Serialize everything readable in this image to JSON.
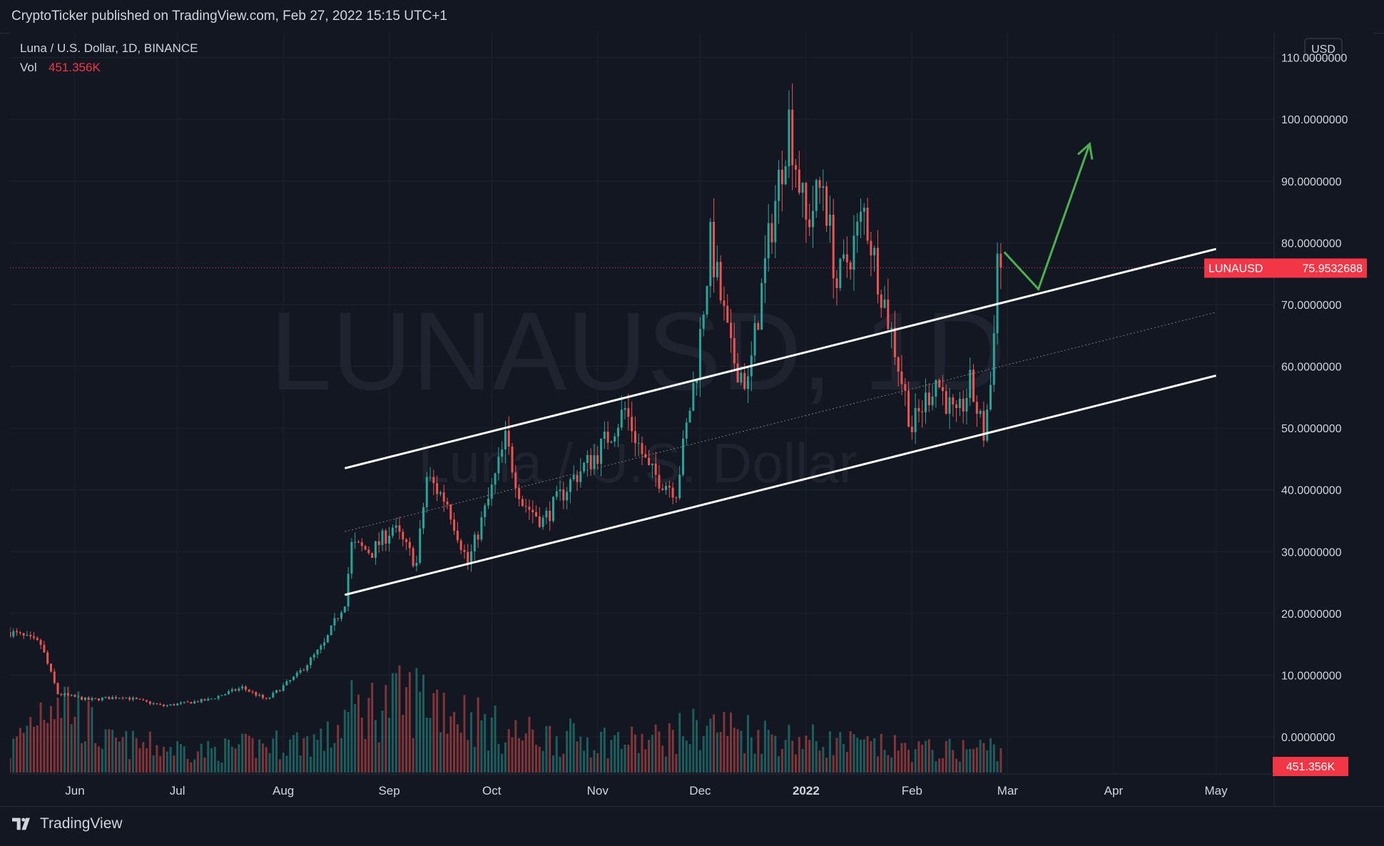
{
  "header": {
    "published_text": "CryptoTicker published on TradingView.com, Feb 27, 2022 15:15 UTC+1"
  },
  "legend": {
    "symbol_line": "Luna / U.S. Dollar, 1D, BINANCE",
    "vol_label": "Vol",
    "vol_value": "451.356K"
  },
  "watermark": {
    "ticker": "LUNAUSD, 1D",
    "name": "Luna / U.S. Dollar"
  },
  "price_axis": {
    "currency_button": "USD",
    "last_price_label": "LUNAUSD",
    "last_price_value": "75.9532688",
    "volume_badge": "451.356K"
  },
  "footer": {
    "brand": "TradingView"
  },
  "colors": {
    "background": "#131722",
    "grid": "#1e222d",
    "up": "#26a69a",
    "down": "#ef5350",
    "accent_red": "#f23645",
    "channel": "#ffffff",
    "arrow": "#4caf50"
  },
  "chart_data": {
    "type": "candlestick",
    "symbol": "LUNAUSD",
    "interval": "1D",
    "exchange": "BINANCE",
    "y_axis": {
      "range": [
        -6,
        114
      ],
      "ticks": [
        0,
        10,
        20,
        30,
        40,
        50,
        60,
        70,
        80,
        90,
        100,
        110
      ],
      "tick_labels": [
        "0.0000000",
        "10.0000000",
        "20.0000000",
        "30.0000000",
        "40.0000000",
        "50.0000000",
        "60.0000000",
        "70.0000000",
        "80.0000000",
        "90.0000000",
        "100.0000000",
        "110.0000000"
      ]
    },
    "x_axis": {
      "range": [
        "2021-05-13",
        "2022-05-18"
      ],
      "ticks": [
        {
          "label": "Jun",
          "date": "2021-06-01",
          "bold": false
        },
        {
          "label": "Jul",
          "date": "2021-07-01",
          "bold": false
        },
        {
          "label": "Aug",
          "date": "2021-08-01",
          "bold": false
        },
        {
          "label": "Sep",
          "date": "2021-09-01",
          "bold": false
        },
        {
          "label": "Oct",
          "date": "2021-10-01",
          "bold": false
        },
        {
          "label": "Nov",
          "date": "2021-11-01",
          "bold": false
        },
        {
          "label": "Dec",
          "date": "2021-12-01",
          "bold": false
        },
        {
          "label": "2022",
          "date": "2022-01-01",
          "bold": true
        },
        {
          "label": "Feb",
          "date": "2022-02-01",
          "bold": false
        },
        {
          "label": "Mar",
          "date": "2022-03-01",
          "bold": false
        },
        {
          "label": "Apr",
          "date": "2022-04-01",
          "bold": false
        },
        {
          "label": "May",
          "date": "2022-05-01",
          "bold": false
        }
      ]
    },
    "price_path": [
      {
        "date": "2021-05-13",
        "close": 17
      },
      {
        "date": "2021-05-22",
        "close": 15
      },
      {
        "date": "2021-05-27",
        "close": 7
      },
      {
        "date": "2021-06-05",
        "close": 6
      },
      {
        "date": "2021-06-15",
        "close": 6.5
      },
      {
        "date": "2021-06-27",
        "close": 5
      },
      {
        "date": "2021-07-10",
        "close": 6
      },
      {
        "date": "2021-07-20",
        "close": 8
      },
      {
        "date": "2021-07-27",
        "close": 6
      },
      {
        "date": "2021-08-05",
        "close": 10
      },
      {
        "date": "2021-08-13",
        "close": 15
      },
      {
        "date": "2021-08-19",
        "close": 22
      },
      {
        "date": "2021-08-21",
        "close": 31
      },
      {
        "date": "2021-08-27",
        "close": 30
      },
      {
        "date": "2021-09-02",
        "close": 34
      },
      {
        "date": "2021-09-09",
        "close": 28
      },
      {
        "date": "2021-09-12",
        "close": 42
      },
      {
        "date": "2021-09-18",
        "close": 38
      },
      {
        "date": "2021-09-24",
        "close": 28
      },
      {
        "date": "2021-10-01",
        "close": 40
      },
      {
        "date": "2021-10-05",
        "close": 48
      },
      {
        "date": "2021-10-10",
        "close": 38
      },
      {
        "date": "2021-10-16",
        "close": 35
      },
      {
        "date": "2021-10-25",
        "close": 42
      },
      {
        "date": "2021-11-01",
        "close": 46
      },
      {
        "date": "2021-11-09",
        "close": 53
      },
      {
        "date": "2021-11-16",
        "close": 43
      },
      {
        "date": "2021-11-24",
        "close": 40
      },
      {
        "date": "2021-11-30",
        "close": 60
      },
      {
        "date": "2021-12-04",
        "close": 80
      },
      {
        "date": "2021-12-10",
        "close": 62
      },
      {
        "date": "2021-12-15",
        "close": 57
      },
      {
        "date": "2021-12-21",
        "close": 80
      },
      {
        "date": "2021-12-27",
        "close": 100
      },
      {
        "date": "2022-01-01",
        "close": 83
      },
      {
        "date": "2022-01-06",
        "close": 90
      },
      {
        "date": "2022-01-10",
        "close": 73
      },
      {
        "date": "2022-01-15",
        "close": 80
      },
      {
        "date": "2022-01-18",
        "close": 85
      },
      {
        "date": "2022-01-22",
        "close": 75
      },
      {
        "date": "2022-01-27",
        "close": 63
      },
      {
        "date": "2022-02-01",
        "close": 50
      },
      {
        "date": "2022-02-08",
        "close": 58
      },
      {
        "date": "2022-02-14",
        "close": 51
      },
      {
        "date": "2022-02-18",
        "close": 57
      },
      {
        "date": "2022-02-22",
        "close": 49
      },
      {
        "date": "2022-02-24",
        "close": 57
      },
      {
        "date": "2022-02-26",
        "close": 78
      },
      {
        "date": "2022-02-27",
        "close": 75.95
      }
    ],
    "volume_path": [
      {
        "date": "2021-05-13",
        "value": 0.25
      },
      {
        "date": "2021-05-26",
        "value": 1.0
      },
      {
        "date": "2021-06-10",
        "value": 0.35
      },
      {
        "date": "2021-07-10",
        "value": 0.25
      },
      {
        "date": "2021-08-15",
        "value": 0.4
      },
      {
        "date": "2021-08-20",
        "value": 0.7
      },
      {
        "date": "2021-09-12",
        "value": 0.9
      },
      {
        "date": "2021-10-05",
        "value": 0.45
      },
      {
        "date": "2021-11-15",
        "value": 0.35
      },
      {
        "date": "2021-12-04",
        "value": 0.55
      },
      {
        "date": "2021-12-27",
        "value": 0.4
      },
      {
        "date": "2022-01-20",
        "value": 0.3
      },
      {
        "date": "2022-02-10",
        "value": 0.25
      },
      {
        "date": "2022-02-26",
        "value": 0.3
      }
    ],
    "last_price": 75.9532688,
    "last_volume": "451.356K",
    "drawings": {
      "channel_upper": [
        {
          "date": "2021-08-19",
          "price": 43.5
        },
        {
          "date": "2022-05-01",
          "price": 79.0
        }
      ],
      "channel_lower": [
        {
          "date": "2021-08-19",
          "price": 23.0
        },
        {
          "date": "2022-05-01",
          "price": 58.5
        }
      ],
      "channel_mid": [
        {
          "date": "2021-08-19",
          "price": 33.25
        },
        {
          "date": "2022-05-01",
          "price": 68.75
        }
      ],
      "projection_arrow": [
        {
          "date": "2022-02-28",
          "price": 78.5
        },
        {
          "date": "2022-03-10",
          "price": 72.5
        },
        {
          "date": "2022-03-25",
          "price": 96.0
        }
      ]
    }
  }
}
